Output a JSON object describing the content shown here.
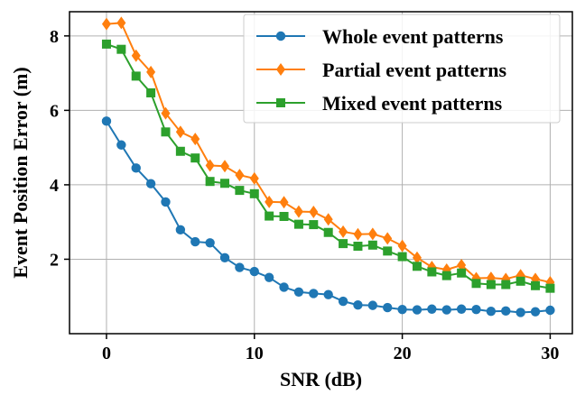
{
  "chart_data": {
    "type": "line",
    "title": "",
    "xlabel": "SNR (dB)",
    "ylabel": "Event Position Error (m)",
    "xlim": [
      -2.5,
      31.5
    ],
    "ylim": [
      0.0,
      8.65
    ],
    "xticks": [
      0,
      10,
      20,
      30
    ],
    "xtick_labels": [
      "0",
      "10",
      "20",
      "30"
    ],
    "yticks": [
      2,
      4,
      6,
      8
    ],
    "ytick_labels": [
      "2",
      "4",
      "6",
      "8"
    ],
    "grid": true,
    "legend_position": "upper right",
    "x": [
      0,
      1,
      2,
      3,
      4,
      5,
      6,
      7,
      8,
      9,
      10,
      11,
      12,
      13,
      14,
      15,
      16,
      17,
      18,
      19,
      20,
      21,
      22,
      23,
      24,
      25,
      26,
      27,
      28,
      29,
      30
    ],
    "series": [
      {
        "name": "Whole event patterns",
        "color": "#1f77b4",
        "marker": "circle",
        "values": [
          5.71,
          5.07,
          4.45,
          4.03,
          3.54,
          2.79,
          2.47,
          2.44,
          2.04,
          1.78,
          1.67,
          1.51,
          1.25,
          1.12,
          1.08,
          1.05,
          0.87,
          0.77,
          0.76,
          0.7,
          0.65,
          0.64,
          0.66,
          0.64,
          0.66,
          0.65,
          0.6,
          0.61,
          0.57,
          0.59,
          0.63
        ]
      },
      {
        "name": "Partial event patterns",
        "color": "#ff7f0e",
        "marker": "diamond",
        "values": [
          8.32,
          8.35,
          7.47,
          7.03,
          5.92,
          5.42,
          5.23,
          4.52,
          4.5,
          4.26,
          4.17,
          3.54,
          3.53,
          3.28,
          3.27,
          3.07,
          2.74,
          2.67,
          2.68,
          2.56,
          2.36,
          2.04,
          1.79,
          1.72,
          1.84,
          1.49,
          1.5,
          1.47,
          1.57,
          1.47,
          1.38
        ]
      },
      {
        "name": "Mixed event patterns",
        "color": "#2ca02c",
        "marker": "square",
        "values": [
          7.78,
          7.64,
          6.92,
          6.47,
          5.42,
          4.9,
          4.72,
          4.09,
          4.04,
          3.85,
          3.76,
          3.16,
          3.15,
          2.94,
          2.93,
          2.72,
          2.42,
          2.35,
          2.38,
          2.22,
          2.07,
          1.81,
          1.66,
          1.56,
          1.63,
          1.35,
          1.32,
          1.32,
          1.41,
          1.29,
          1.22
        ]
      }
    ]
  }
}
